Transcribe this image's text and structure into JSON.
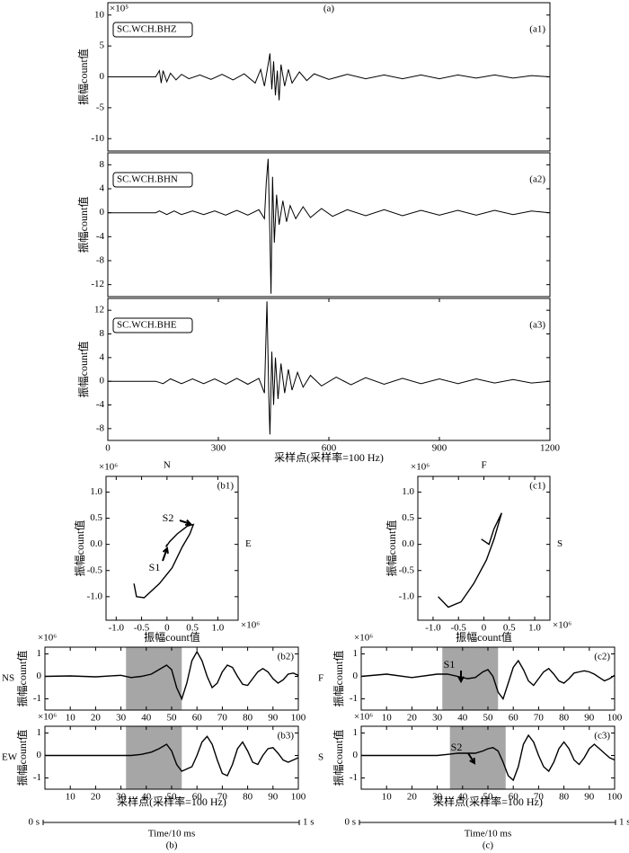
{
  "chart_data": [
    {
      "type": "line",
      "title": "(a)",
      "y_exponent": "×10⁵",
      "ylabel": "振幅count值",
      "station": "SC.WCH.BHZ",
      "panel": "(a1)",
      "color": "#000000",
      "xlim": [
        0,
        1200
      ],
      "ylim": [
        -12,
        12
      ],
      "yticks": [
        -10,
        -5,
        0,
        5,
        10
      ],
      "x": [
        0,
        130,
        140,
        145,
        150,
        160,
        170,
        185,
        200,
        220,
        250,
        280,
        310,
        340,
        370,
        400,
        415,
        425,
        435,
        440,
        445,
        450,
        455,
        460,
        465,
        470,
        480,
        490,
        500,
        520,
        540,
        560,
        600,
        650,
        700,
        750,
        800,
        850,
        900,
        950,
        1000,
        1050,
        1100,
        1150,
        1200
      ],
      "values": [
        0,
        0,
        1,
        -1,
        1,
        -0.8,
        0.6,
        -0.5,
        0.4,
        -0.3,
        0.3,
        -0.4,
        0.4,
        -0.5,
        0.5,
        -1,
        1.2,
        -1.5,
        2,
        3.8,
        -2,
        2.5,
        -3,
        1,
        -3.8,
        2,
        -1.5,
        1.2,
        -1,
        0.8,
        -0.6,
        0.5,
        -0.4,
        0.4,
        -0.3,
        0.3,
        -0.3,
        0.3,
        -0.3,
        0.3,
        -0.2,
        0.3,
        -0.2,
        0.2,
        0
      ]
    },
    {
      "type": "line",
      "ylabel": "振幅count值",
      "station": "SC.WCH.BHN",
      "panel": "(a2)",
      "color": "#000000",
      "xlim": [
        0,
        1200
      ],
      "ylim": [
        -14,
        10
      ],
      "yticks": [
        -12,
        -8,
        -4,
        0,
        4,
        8
      ],
      "x": [
        0,
        130,
        140,
        160,
        180,
        200,
        230,
        260,
        290,
        320,
        350,
        380,
        410,
        425,
        430,
        435,
        440,
        443,
        447,
        452,
        458,
        465,
        475,
        485,
        495,
        510,
        530,
        550,
        580,
        610,
        650,
        700,
        750,
        800,
        850,
        900,
        950,
        1000,
        1050,
        1100,
        1150,
        1200
      ],
      "values": [
        0,
        0,
        0.3,
        -0.3,
        0.3,
        -0.3,
        0.3,
        -0.3,
        0.3,
        -0.4,
        0.4,
        -0.4,
        0.5,
        -1,
        5,
        9,
        -4,
        -13.5,
        6,
        -5,
        3,
        -2,
        2,
        -1.5,
        1.2,
        -1,
        1,
        -0.8,
        0.7,
        -0.6,
        0.5,
        -0.5,
        0.5,
        -0.5,
        0.4,
        -0.4,
        0.4,
        -0.4,
        0.4,
        -0.3,
        0.3,
        0
      ]
    },
    {
      "type": "line",
      "ylabel": "振幅count值",
      "station": "SC.WCH.BHE",
      "panel": "(a3)",
      "color": "#000000",
      "xlabel": "采样点(采样率=100 Hz)",
      "xlim": [
        0,
        1200
      ],
      "ylim": [
        -10,
        14
      ],
      "yticks": [
        -8,
        -4,
        0,
        4,
        8,
        12
      ],
      "xticks": [
        0,
        300,
        600,
        900,
        1200
      ],
      "x": [
        0,
        130,
        150,
        170,
        200,
        230,
        260,
        290,
        320,
        350,
        380,
        410,
        425,
        432,
        437,
        440,
        445,
        450,
        455,
        462,
        470,
        480,
        490,
        500,
        515,
        530,
        550,
        580,
        620,
        660,
        700,
        750,
        800,
        850,
        900,
        950,
        1000,
        1050,
        1100,
        1150,
        1200
      ],
      "values": [
        0,
        0,
        -0.4,
        0.4,
        -0.4,
        0.4,
        -0.4,
        0.4,
        -0.5,
        0.5,
        -0.5,
        0.5,
        -2,
        13.5,
        -3,
        -9,
        5,
        -4,
        4,
        -3,
        3,
        -2,
        2,
        -1.5,
        1.5,
        -1,
        1,
        -0.8,
        0.7,
        -0.6,
        0.6,
        -0.5,
        0.5,
        -0.4,
        0.4,
        -0.4,
        0.4,
        -0.3,
        0.3,
        -0.3,
        0
      ]
    },
    {
      "type": "line",
      "panel": "(b1)",
      "top_label": "N",
      "right_label": "E",
      "xlabel": "振幅count值",
      "ylabel": "振幅count值",
      "x_exponent": "×10⁶",
      "y_exponent": "×10⁶",
      "annotations": [
        "S1",
        "S2"
      ],
      "color": "#000000",
      "xlim": [
        -1.2,
        1.4
      ],
      "ylim": [
        -1.45,
        1.3
      ],
      "xticks": [
        {
          "value": -1,
          "label": "-1.0"
        },
        -0.5,
        0,
        0.5,
        {
          "value": 1,
          "label": "1.0"
        }
      ],
      "yticks": [
        {
          "value": -1,
          "label": "-1.0"
        },
        -0.5,
        {
          "value": 0,
          "label": "0.0"
        },
        0.5,
        {
          "value": 1,
          "label": "1.0"
        }
      ],
      "x": [
        -0.65,
        -0.6,
        -0.45,
        -0.15,
        0.1,
        0.3,
        0.45,
        0.52,
        0.4,
        0.2,
        0.05,
        -0.02,
        0.0
      ],
      "values": [
        -0.75,
        -1.0,
        -1.02,
        -0.75,
        -0.45,
        -0.05,
        0.2,
        0.38,
        0.35,
        0.2,
        0.05,
        -0.05,
        0.0
      ]
    },
    {
      "type": "line",
      "panel": "(c1)",
      "top_label": "F",
      "right_label": "S",
      "xlabel": "振幅count值",
      "ylabel": "振幅count值",
      "x_exponent": "×10⁶",
      "y_exponent": "×10⁶",
      "color": "#000000",
      "xlim": [
        -1.3,
        1.3
      ],
      "ylim": [
        -1.45,
        1.3
      ],
      "xticks": [
        {
          "value": -1,
          "label": "-1.0"
        },
        -0.5,
        0,
        0.5,
        {
          "value": 1,
          "label": "1.0"
        }
      ],
      "yticks": [
        {
          "value": -1,
          "label": "-1.0"
        },
        -0.5,
        {
          "value": 0,
          "label": "0.0"
        },
        0.5,
        {
          "value": 1,
          "label": "1.0"
        }
      ],
      "x": [
        -0.9,
        -0.7,
        -0.45,
        -0.2,
        0.05,
        0.2,
        0.35,
        0.2,
        0.1,
        -0.05
      ],
      "values": [
        -1.0,
        -1.2,
        -1.1,
        -0.75,
        -0.3,
        0.1,
        0.6,
        0.3,
        0.0,
        0.1
      ]
    },
    {
      "type": "line",
      "panel": "(b2)",
      "left_label": "NS",
      "ylabel": "振幅count值",
      "y_exponent": "×10⁶",
      "highlight": [
        32,
        54
      ],
      "color": "#000000",
      "xlim": [
        0,
        100
      ],
      "ylim": [
        -1.5,
        1.3
      ],
      "yticks": [
        -1,
        0,
        1
      ],
      "xticks": [
        10,
        20,
        30,
        40,
        50,
        60,
        70,
        80,
        90,
        100
      ],
      "x": [
        0,
        10,
        20,
        30,
        34,
        38,
        42,
        45,
        48,
        50,
        52,
        54,
        56,
        58,
        60,
        62,
        64,
        66,
        68,
        70,
        72,
        74,
        76,
        78,
        80,
        82,
        84,
        86,
        88,
        90,
        92,
        94,
        96,
        98,
        100
      ],
      "values": [
        0,
        0.02,
        -0.02,
        0.05,
        -0.05,
        0,
        0.1,
        0.3,
        0.5,
        0.3,
        -0.5,
        -1.0,
        -0.3,
        0.7,
        1.1,
        0.7,
        0,
        -0.5,
        -0.3,
        0.2,
        0.5,
        0.4,
        0,
        -0.35,
        -0.4,
        -0.1,
        0.2,
        0.35,
        0.2,
        -0.1,
        -0.3,
        -0.15,
        0.1,
        0.15,
        0.05
      ]
    },
    {
      "type": "line",
      "panel": "(b3)",
      "left_label": "EW",
      "ylabel": "振幅count值",
      "y_exponent": "×10⁶",
      "highlight": [
        32,
        54
      ],
      "color": "#000000",
      "xlabel": "采样点(采样率=100 Hz)",
      "time_axis": {
        "start": "0 s",
        "end": "1 s",
        "label": "Time/10 ms"
      },
      "caption": "(b)",
      "xlim": [
        0,
        100
      ],
      "ylim": [
        -1.5,
        1.3
      ],
      "yticks": [
        -1,
        0,
        1
      ],
      "xticks": [
        10,
        20,
        30,
        40,
        50,
        60,
        70,
        80,
        90,
        100
      ],
      "x": [
        0,
        10,
        20,
        30,
        34,
        38,
        42,
        45,
        48,
        50,
        52,
        54,
        56,
        58,
        60,
        62,
        64,
        66,
        68,
        70,
        72,
        74,
        76,
        78,
        80,
        82,
        84,
        86,
        88,
        90,
        92,
        94,
        96,
        98,
        100
      ],
      "values": [
        0,
        0,
        0,
        0,
        0,
        0.05,
        0.15,
        0.3,
        0.5,
        0.2,
        -0.4,
        -0.7,
        -0.6,
        -0.5,
        0,
        0.6,
        0.85,
        0.5,
        -0.2,
        -0.8,
        -0.9,
        -0.4,
        0.3,
        0.6,
        0.2,
        -0.3,
        -0.4,
        0,
        0.3,
        0.35,
        0.1,
        -0.2,
        -0.3,
        -0.2,
        -0.1
      ]
    },
    {
      "type": "line",
      "panel": "(c2)",
      "left_label": "F",
      "ylabel": "振幅count值",
      "y_exponent": "×10⁶",
      "highlight": [
        32,
        54
      ],
      "annotations": [
        "S1"
      ],
      "color": "#000000",
      "xlim": [
        0,
        100
      ],
      "ylim": [
        -1.5,
        1.3
      ],
      "yticks": [
        -1,
        0,
        1
      ],
      "xticks": [
        10,
        20,
        30,
        40,
        50,
        60,
        70,
        80,
        90,
        100
      ],
      "x": [
        0,
        10,
        20,
        30,
        34,
        38,
        42,
        45,
        48,
        50,
        52,
        54,
        56,
        58,
        60,
        62,
        64,
        66,
        68,
        70,
        72,
        74,
        76,
        78,
        80,
        82,
        84,
        86,
        88,
        90,
        92,
        94,
        96,
        98,
        100
      ],
      "values": [
        0,
        0.1,
        -0.05,
        0.1,
        0.1,
        0,
        -0.1,
        -0.05,
        0.2,
        0.3,
        0,
        -0.7,
        -1.0,
        -0.3,
        0.4,
        0.7,
        0.3,
        -0.2,
        -0.4,
        -0.1,
        0.2,
        0.35,
        0.1,
        -0.2,
        -0.3,
        -0.1,
        0.15,
        0.2,
        0.25,
        0.2,
        0.1,
        -0.05,
        -0.2,
        -0.1,
        0.05
      ]
    },
    {
      "type": "line",
      "panel": "(c3)",
      "left_label": "S",
      "ylabel": "振幅count值",
      "y_exponent": "×10⁶",
      "highlight": [
        35,
        57
      ],
      "annotations": [
        "S2"
      ],
      "color": "#000000",
      "xlabel": "采样点(采样率=100 Hz)",
      "time_axis": {
        "start": "0 s",
        "end": "1 s",
        "label": "Time/10 ms"
      },
      "caption": "(c)",
      "xlim": [
        0,
        100
      ],
      "ylim": [
        -1.5,
        1.3
      ],
      "yticks": [
        -1,
        0,
        1
      ],
      "xticks": [
        10,
        20,
        30,
        40,
        50,
        60,
        70,
        80,
        90,
        100
      ],
      "x": [
        0,
        10,
        20,
        30,
        34,
        38,
        42,
        45,
        48,
        50,
        52,
        54,
        56,
        58,
        60,
        62,
        64,
        66,
        68,
        70,
        72,
        74,
        76,
        78,
        80,
        82,
        84,
        86,
        88,
        90,
        92,
        94,
        96,
        98,
        100
      ],
      "values": [
        0,
        0,
        0,
        0,
        0.05,
        0.1,
        0.1,
        0.1,
        0.2,
        0.3,
        0.35,
        0.2,
        -0.3,
        -0.9,
        -1.1,
        -0.5,
        0.5,
        0.9,
        0.6,
        0,
        -0.5,
        -0.7,
        -0.3,
        0.3,
        0.6,
        0.3,
        -0.2,
        -0.4,
        -0.1,
        0.3,
        0.5,
        0.3,
        0.1,
        -0.1,
        -0.2
      ]
    }
  ]
}
